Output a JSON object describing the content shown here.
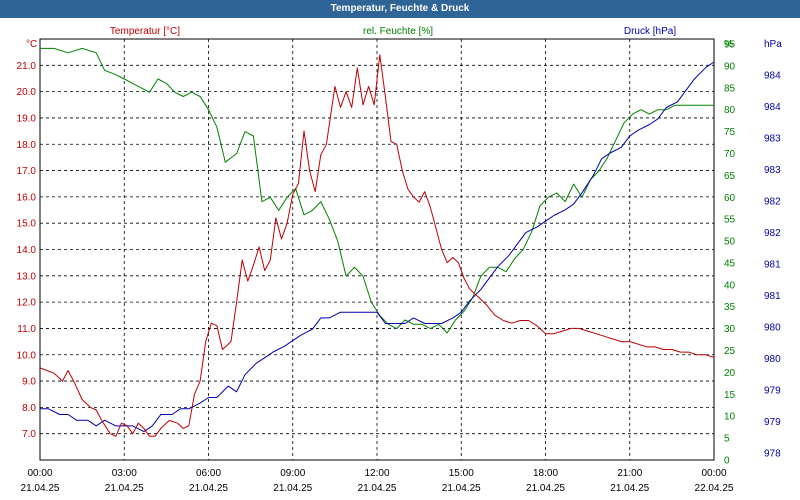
{
  "window_title": "Temperatur, Feuchte & Druck",
  "colors": {
    "temp": "#c00000",
    "hum": "#008000",
    "press": "#0000b0",
    "titlebar": "#2f6496"
  },
  "chart_data": {
    "type": "line",
    "title": "Temperatur, Feuchte & Druck",
    "grid": true,
    "x_ticks": [
      {
        "time": "00:00",
        "date": "21.04.25"
      },
      {
        "time": "03:00",
        "date": "21.04.25"
      },
      {
        "time": "06:00",
        "date": "21.04.25"
      },
      {
        "time": "09:00",
        "date": "21.04.25"
      },
      {
        "time": "12:00",
        "date": "21.04.25"
      },
      {
        "time": "15:00",
        "date": "21.04.25"
      },
      {
        "time": "18:00",
        "date": "21.04.25"
      },
      {
        "time": "21:00",
        "date": "21.04.25"
      },
      {
        "time": "00:00",
        "date": "22.04.25"
      }
    ],
    "axes": {
      "temp": {
        "unit": "°C",
        "min": 6.0,
        "max": 22.0,
        "ticks": [
          "7.0",
          "8.0",
          "9.0",
          "10.0",
          "11.0",
          "12.0",
          "13.0",
          "14.0",
          "15.0",
          "16.0",
          "17.0",
          "18.0",
          "19.0",
          "20.0",
          "21.0"
        ]
      },
      "hum": {
        "unit": "%",
        "min": 0,
        "max": 95,
        "ticks": [
          "0",
          "5",
          "10",
          "15",
          "20",
          "25",
          "30",
          "35",
          "40",
          "45",
          "50",
          "55",
          "60",
          "65",
          "70",
          "75",
          "80",
          "85",
          "90",
          "95"
        ]
      },
      "press": {
        "unit": "hPa",
        "min": 978,
        "max": 985.0,
        "ticks": [
          "978",
          "979",
          "979",
          "980",
          "980",
          "981",
          "981",
          "982",
          "982",
          "983",
          "983",
          "984",
          "984"
        ]
      }
    },
    "series": [
      {
        "name": "Temperatur [°C]",
        "color": "#c00000",
        "axis": "temp",
        "x": [
          0,
          0.5,
          0.8,
          1.0,
          1.2,
          1.5,
          1.8,
          2.0,
          2.2,
          2.5,
          2.7,
          2.9,
          3.1,
          3.3,
          3.5,
          3.7,
          3.9,
          4.1,
          4.3,
          4.6,
          4.9,
          5.1,
          5.3,
          5.5,
          5.7,
          5.9,
          6.1,
          6.3,
          6.5,
          6.8,
          7.0,
          7.2,
          7.4,
          7.6,
          7.8,
          8.0,
          8.2,
          8.4,
          8.6,
          8.8,
          9.0,
          9.2,
          9.4,
          9.6,
          9.8,
          10.0,
          10.2,
          10.5,
          10.7,
          10.9,
          11.1,
          11.3,
          11.5,
          11.7,
          11.9,
          12.1,
          12.3,
          12.5,
          12.7,
          12.9,
          13.1,
          13.3,
          13.5,
          13.7,
          13.9,
          14.1,
          14.3,
          14.5,
          14.7,
          14.9,
          15.1,
          15.3,
          15.6,
          15.9,
          16.2,
          16.5,
          16.8,
          17.1,
          17.4,
          17.7,
          18.0,
          18.3,
          18.6,
          18.9,
          19.2,
          19.5,
          19.8,
          20.1,
          20.4,
          20.7,
          21.0,
          21.3,
          21.6,
          21.9,
          22.2,
          22.5,
          22.8,
          23.1,
          23.4,
          23.7,
          24.0
        ],
        "values": [
          9.5,
          9.3,
          9.0,
          9.4,
          9.0,
          8.3,
          8.0,
          7.9,
          7.5,
          7.0,
          6.9,
          7.4,
          7.3,
          7.0,
          7.4,
          7.2,
          6.9,
          6.9,
          7.2,
          7.5,
          7.4,
          7.2,
          7.3,
          8.5,
          9.0,
          10.5,
          11.2,
          11.1,
          10.2,
          10.5,
          12.0,
          13.6,
          12.8,
          13.4,
          14.1,
          13.2,
          13.6,
          15.2,
          14.4,
          15.0,
          16.1,
          16.5,
          18.5,
          17.0,
          16.2,
          17.6,
          18.0,
          20.2,
          19.4,
          20.0,
          19.4,
          20.9,
          19.5,
          20.2,
          19.5,
          21.4,
          19.8,
          18.1,
          18.0,
          17.0,
          16.3,
          16.0,
          15.8,
          16.2,
          15.6,
          14.8,
          14.0,
          13.5,
          13.7,
          13.5,
          12.9,
          12.5,
          12.2,
          11.9,
          11.5,
          11.3,
          11.2,
          11.3,
          11.3,
          11.1,
          10.8,
          10.8,
          10.9,
          11.0,
          11.0,
          10.9,
          10.8,
          10.7,
          10.6,
          10.5,
          10.5,
          10.4,
          10.3,
          10.3,
          10.2,
          10.2,
          10.1,
          10.1,
          10.0,
          10.0,
          9.9
        ]
      },
      {
        "name": "rel. Feuchte [%]",
        "color": "#008000",
        "axis": "hum",
        "x": [
          0,
          0.5,
          1.0,
          1.5,
          2.0,
          2.3,
          2.7,
          3.0,
          3.3,
          3.6,
          3.9,
          4.2,
          4.5,
          4.8,
          5.1,
          5.4,
          5.7,
          6.0,
          6.3,
          6.6,
          7.0,
          7.3,
          7.6,
          7.9,
          8.2,
          8.5,
          8.8,
          9.1,
          9.4,
          9.7,
          10.0,
          10.3,
          10.6,
          10.9,
          11.2,
          11.5,
          11.8,
          12.1,
          12.4,
          12.7,
          13.0,
          13.3,
          13.6,
          13.9,
          14.2,
          14.5,
          14.8,
          15.1,
          15.4,
          15.7,
          16.0,
          16.3,
          16.6,
          16.9,
          17.2,
          17.5,
          17.8,
          18.1,
          18.4,
          18.7,
          19.0,
          19.3,
          19.6,
          19.9,
          20.2,
          20.5,
          20.8,
          21.1,
          21.4,
          21.7,
          22.0,
          22.3,
          22.6,
          22.9,
          23.2,
          23.5,
          23.8,
          24.0
        ],
        "values": [
          94,
          94,
          93,
          94,
          93,
          89,
          88,
          87,
          86,
          85,
          84,
          87,
          86,
          84,
          83,
          84,
          83,
          80,
          76,
          68,
          70,
          75,
          74,
          59,
          60,
          57,
          60,
          62,
          56,
          57,
          59,
          55,
          50,
          42,
          44,
          42,
          36,
          33,
          31,
          30,
          32,
          31,
          31,
          30,
          31,
          29,
          32,
          34,
          37,
          42,
          44,
          44,
          43,
          46,
          48,
          52,
          58,
          60,
          61,
          59,
          63,
          60,
          64,
          66,
          69,
          73,
          77,
          79,
          80,
          79,
          80,
          80,
          81,
          81,
          81,
          81,
          81,
          81
        ]
      },
      {
        "name": "Druck [hPa]",
        "color": "#0000b0",
        "axis": "press",
        "x": [
          0,
          0.3,
          0.7,
          1.0,
          1.3,
          1.7,
          2.0,
          2.3,
          2.7,
          3.0,
          3.3,
          3.7,
          4.0,
          4.3,
          4.7,
          5.0,
          5.3,
          5.7,
          6.0,
          6.3,
          6.7,
          7.0,
          7.3,
          7.7,
          8.0,
          8.3,
          8.7,
          9.0,
          9.3,
          9.7,
          10.0,
          10.3,
          10.7,
          11.0,
          11.3,
          11.7,
          12.0,
          12.3,
          12.7,
          13.0,
          13.3,
          13.7,
          14.0,
          14.3,
          14.7,
          15.0,
          15.3,
          15.7,
          16.0,
          16.3,
          16.7,
          17.0,
          17.3,
          17.7,
          18.0,
          18.3,
          18.7,
          19.0,
          19.3,
          19.7,
          20.0,
          20.3,
          20.7,
          21.0,
          21.3,
          21.7,
          22.0,
          22.3,
          22.7,
          23.0,
          23.3,
          23.7,
          24.0
        ],
        "values": [
          978.9,
          978.9,
          978.8,
          978.8,
          978.7,
          978.7,
          978.6,
          978.7,
          978.6,
          978.6,
          978.6,
          978.5,
          978.6,
          978.8,
          978.8,
          978.9,
          978.9,
          979.0,
          979.1,
          979.1,
          979.3,
          979.2,
          979.5,
          979.7,
          979.8,
          979.9,
          980.0,
          980.1,
          980.2,
          980.3,
          980.5,
          980.5,
          980.6,
          980.6,
          980.6,
          980.6,
          980.6,
          980.4,
          980.4,
          980.4,
          980.5,
          980.4,
          980.4,
          980.4,
          980.5,
          980.6,
          980.8,
          981.0,
          981.2,
          981.4,
          981.6,
          981.8,
          982.0,
          982.1,
          982.2,
          982.3,
          982.4,
          982.5,
          982.7,
          983.0,
          983.3,
          983.4,
          983.5,
          983.7,
          983.8,
          983.9,
          984.0,
          984.2,
          984.3,
          984.5,
          984.7,
          984.9,
          985.0
        ]
      }
    ]
  }
}
